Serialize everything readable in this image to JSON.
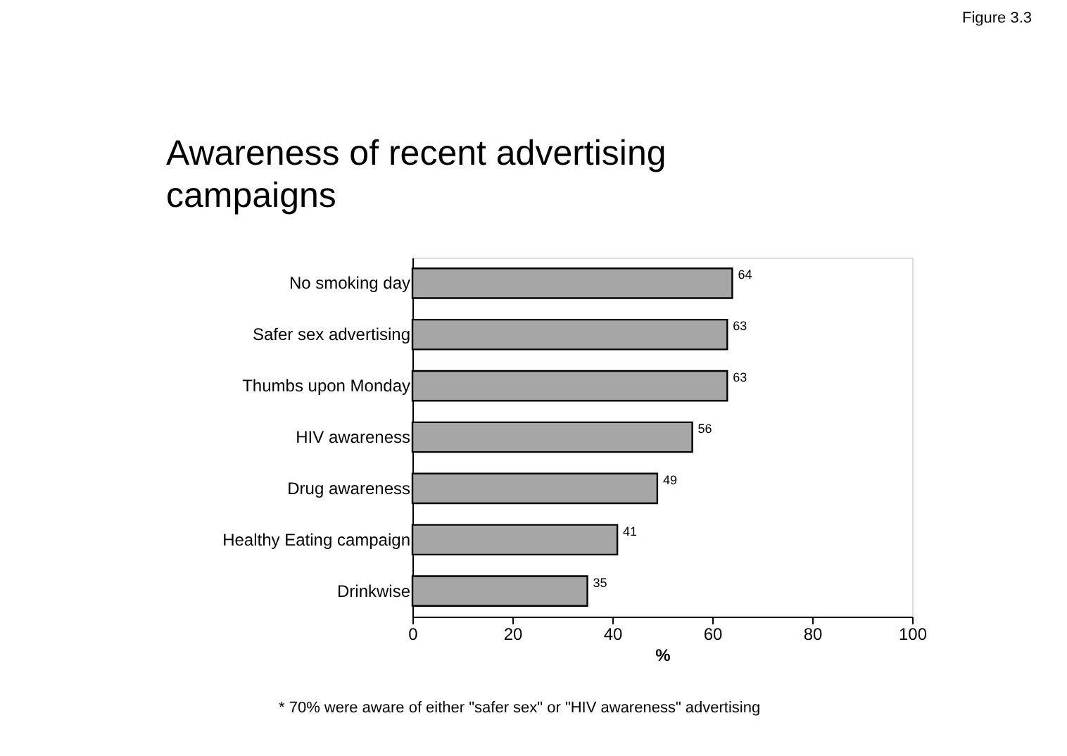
{
  "chart_data": {
    "type": "bar",
    "orientation": "horizontal",
    "title": "Awareness of recent advertising campaigns",
    "categories": [
      "No smoking day",
      "Safer sex advertising",
      "Thumbs upon Monday",
      "HIV awareness",
      "Drug awareness",
      "Healthy Eating campaign",
      "Drinkwise"
    ],
    "values": [
      64,
      63,
      63,
      56,
      49,
      41,
      35
    ],
    "color": "#a6a6a6",
    "xlim": [
      0,
      100
    ],
    "xticks": [
      0,
      20,
      40,
      60,
      80,
      100
    ],
    "xlabel": "%",
    "data_labels": true,
    "grid": false,
    "annotations": [
      "Figure 3.3",
      "*    70% were aware of either \"safer sex\" or \"HIV awareness\" advertising"
    ]
  }
}
